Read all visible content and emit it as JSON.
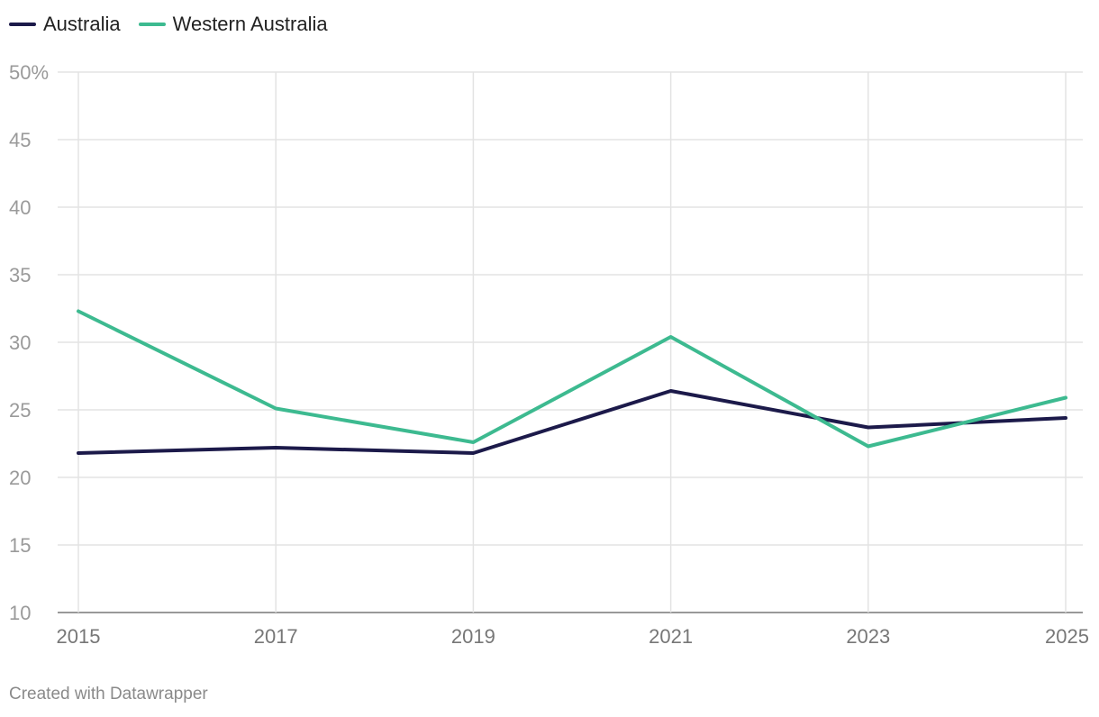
{
  "chart_data": {
    "type": "line",
    "title": "",
    "xlabel": "",
    "ylabel": "",
    "x": [
      2015,
      2017,
      2019,
      2021,
      2023,
      2025
    ],
    "x_ticks": [
      "2015",
      "2017",
      "2019",
      "2021",
      "2023",
      "2025"
    ],
    "y_ticks": [
      "50%",
      "45",
      "40",
      "35",
      "30",
      "25",
      "20",
      "15",
      "10"
    ],
    "ylim": [
      10,
      50
    ],
    "grid": true,
    "legend_position": "top-left",
    "series": [
      {
        "name": "Australia",
        "color": "#1c1a4a",
        "values": [
          21.8,
          22.2,
          21.8,
          26.4,
          23.7,
          24.4
        ]
      },
      {
        "name": "Western Australia",
        "color": "#3dba90",
        "values": [
          32.3,
          25.1,
          22.6,
          30.4,
          22.3,
          25.9
        ]
      }
    ]
  },
  "footer": {
    "credit": "Created with Datawrapper"
  }
}
